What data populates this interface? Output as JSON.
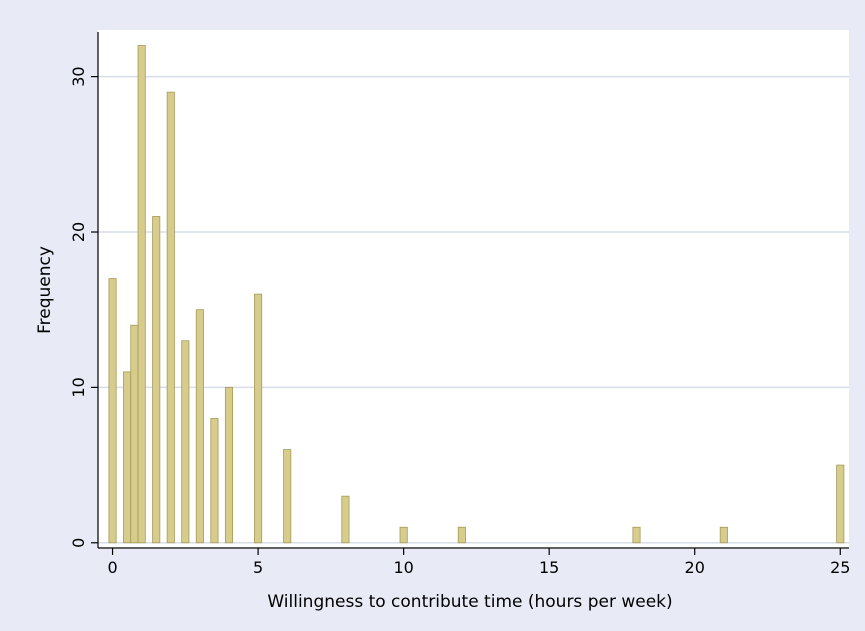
{
  "chart_data": {
    "type": "bar",
    "xlabel": "Willingness to contribute time (hours per week)",
    "ylabel": "Frequency",
    "xlim": [
      -0.5,
      25.3
    ],
    "ylim": [
      -0.4,
      33
    ],
    "xticks": [
      0,
      5,
      10,
      15,
      20,
      25
    ],
    "yticks": [
      0,
      10,
      20,
      30
    ],
    "grid": true,
    "bar_width": 0.25,
    "x": [
      0,
      0.5,
      0.75,
      1,
      1.5,
      2,
      2.5,
      3,
      3.5,
      4,
      5,
      6,
      8,
      10,
      12,
      18,
      21,
      25
    ],
    "values": [
      17,
      11,
      14,
      32,
      21,
      29,
      13,
      15,
      8,
      10,
      16,
      6,
      3,
      1,
      1,
      1,
      1,
      5
    ]
  },
  "colors": {
    "outer_background": "#e8eaf6",
    "plot_background": "#ffffff",
    "bar_fill": "#d7cc8c",
    "bar_edge": "#a59a58",
    "grid": "#d7dde9",
    "axis": "#000000"
  }
}
